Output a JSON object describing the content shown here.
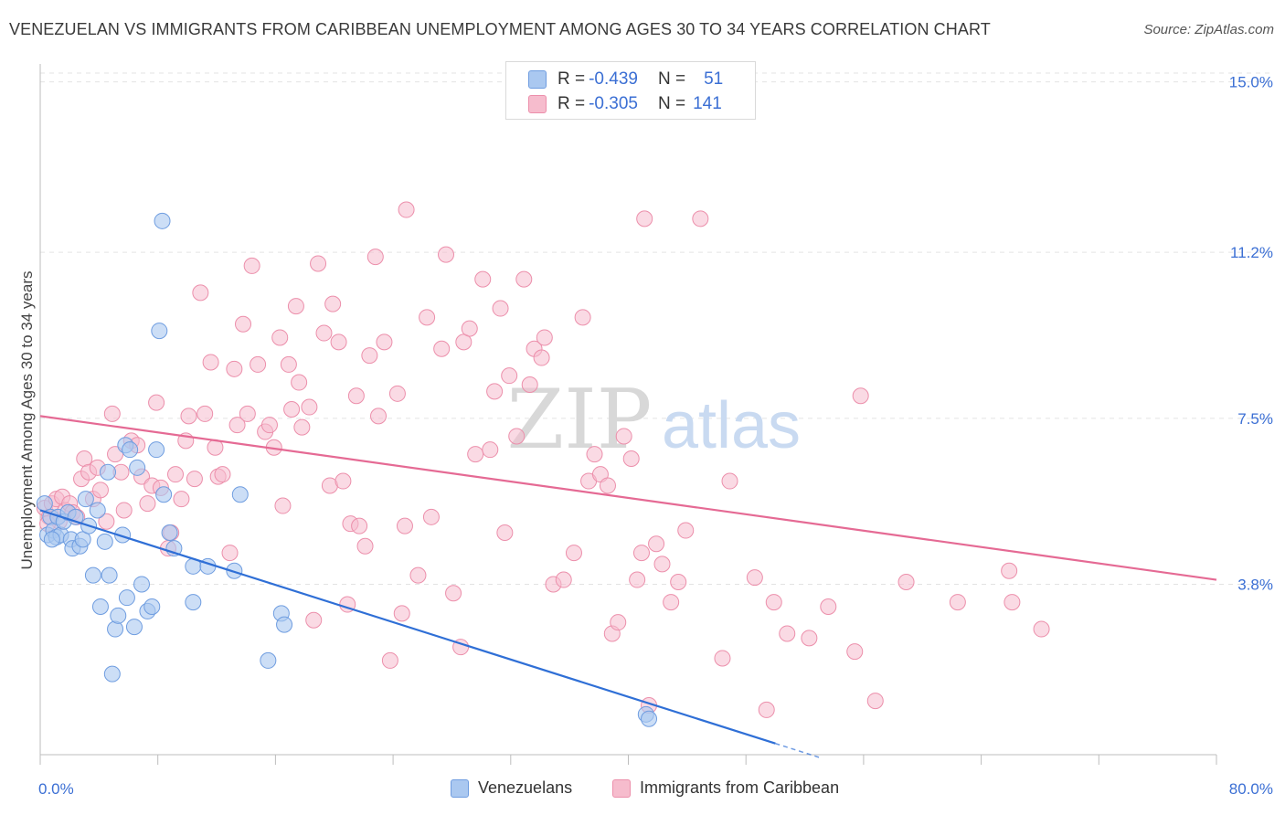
{
  "title": "VENEZUELAN VS IMMIGRANTS FROM CARIBBEAN UNEMPLOYMENT AMONG AGES 30 TO 34 YEARS CORRELATION CHART",
  "source": "Source: ZipAtlas.com",
  "watermark": {
    "zip": "ZIP",
    "atlas": "atlas"
  },
  "legend": {
    "rows": [
      {
        "r_label": "R = ",
        "r_value": "-0.439",
        "n_label": "N = ",
        "n_value": "51"
      },
      {
        "r_label": "R = ",
        "r_value": "-0.305",
        "n_label": "N = ",
        "n_value": "141"
      }
    ]
  },
  "bottom_legend": {
    "series1": "Venezuelans",
    "series2": "Immigrants from Caribbean"
  },
  "colors": {
    "blue_fill": "#aac8f0",
    "blue_stroke": "#6f9de0",
    "blue_line": "#2f6fd6",
    "pink_fill": "#f6bccd",
    "pink_stroke": "#ec8fab",
    "pink_line": "#e56a94",
    "tick_text": "#3b6fd4"
  },
  "chart_data": {
    "type": "scatter",
    "xlabel": "",
    "ylabel": "Unemployment Among Ages 30 to 34 years",
    "xlim": [
      0,
      80
    ],
    "ylim": [
      0,
      15.4
    ],
    "x_tick_labels": [
      "0.0%",
      "80.0%"
    ],
    "y_ticks": [
      3.8,
      7.5,
      11.2,
      15.0
    ],
    "y_tick_labels": [
      "3.8%",
      "7.5%",
      "11.2%",
      "15.0%"
    ],
    "grid": true,
    "series": [
      {
        "name": "Venezuelans",
        "r": -0.439,
        "n": 51,
        "trend": {
          "x": [
            0,
            50
          ],
          "y": [
            5.45,
            0.25
          ],
          "dashed_to_x": 53
        },
        "points": [
          [
            0.3,
            5.6
          ],
          [
            0.5,
            4.9
          ],
          [
            0.7,
            5.3
          ],
          [
            0.9,
            5.0
          ],
          [
            1.1,
            4.85
          ],
          [
            1.2,
            5.3
          ],
          [
            1.4,
            4.9
          ],
          [
            1.6,
            5.2
          ],
          [
            1.9,
            5.4
          ],
          [
            2.1,
            4.8
          ],
          [
            2.2,
            4.6
          ],
          [
            2.4,
            5.3
          ],
          [
            2.7,
            4.65
          ],
          [
            2.9,
            4.8
          ],
          [
            3.1,
            5.7
          ],
          [
            3.3,
            5.1
          ],
          [
            3.6,
            4.0
          ],
          [
            3.9,
            5.45
          ],
          [
            4.1,
            3.3
          ],
          [
            4.4,
            4.75
          ],
          [
            4.6,
            6.3
          ],
          [
            4.7,
            4.0
          ],
          [
            4.9,
            1.8
          ],
          [
            5.1,
            2.8
          ],
          [
            5.3,
            3.1
          ],
          [
            5.6,
            4.9
          ],
          [
            5.8,
            6.9
          ],
          [
            5.9,
            3.5
          ],
          [
            6.1,
            6.8
          ],
          [
            6.4,
            2.85
          ],
          [
            6.6,
            6.4
          ],
          [
            6.9,
            3.8
          ],
          [
            7.3,
            3.2
          ],
          [
            7.6,
            3.3
          ],
          [
            7.9,
            6.8
          ],
          [
            8.3,
            11.9
          ],
          [
            8.4,
            5.8
          ],
          [
            8.1,
            9.45
          ],
          [
            8.8,
            4.95
          ],
          [
            9.1,
            4.6
          ],
          [
            10.4,
            4.2
          ],
          [
            10.4,
            3.4
          ],
          [
            11.4,
            4.2
          ],
          [
            13.2,
            4.1
          ],
          [
            13.6,
            5.8
          ],
          [
            15.5,
            2.1
          ],
          [
            16.4,
            3.15
          ],
          [
            16.6,
            2.9
          ],
          [
            41.2,
            0.9
          ],
          [
            41.4,
            0.8
          ],
          [
            0.8,
            4.8
          ]
        ]
      },
      {
        "name": "Immigrants from Caribbean",
        "r": -0.305,
        "n": 141,
        "trend": {
          "x": [
            0,
            80
          ],
          "y": [
            7.55,
            3.9
          ]
        },
        "points": [
          [
            0.3,
            5.5
          ],
          [
            0.6,
            5.3
          ],
          [
            0.8,
            5.6
          ],
          [
            1.1,
            5.7
          ],
          [
            1.3,
            5.2
          ],
          [
            1.5,
            5.75
          ],
          [
            1.7,
            5.45
          ],
          [
            2.0,
            5.6
          ],
          [
            2.2,
            5.4
          ],
          [
            2.5,
            5.3
          ],
          [
            2.8,
            6.15
          ],
          [
            3.0,
            6.6
          ],
          [
            3.3,
            6.3
          ],
          [
            3.6,
            5.7
          ],
          [
            3.9,
            6.4
          ],
          [
            4.1,
            5.9
          ],
          [
            4.5,
            5.2
          ],
          [
            4.9,
            7.6
          ],
          [
            5.1,
            6.7
          ],
          [
            5.5,
            6.3
          ],
          [
            5.7,
            5.45
          ],
          [
            6.2,
            7.0
          ],
          [
            6.6,
            6.9
          ],
          [
            6.9,
            6.2
          ],
          [
            7.3,
            5.6
          ],
          [
            7.6,
            6.0
          ],
          [
            7.9,
            7.85
          ],
          [
            8.2,
            5.95
          ],
          [
            8.7,
            4.6
          ],
          [
            8.9,
            4.95
          ],
          [
            9.2,
            6.25
          ],
          [
            9.6,
            5.7
          ],
          [
            9.9,
            7.0
          ],
          [
            10.1,
            7.55
          ],
          [
            10.5,
            6.15
          ],
          [
            10.9,
            10.3
          ],
          [
            11.2,
            7.6
          ],
          [
            11.6,
            8.75
          ],
          [
            11.9,
            6.85
          ],
          [
            12.1,
            6.2
          ],
          [
            12.4,
            6.25
          ],
          [
            12.9,
            4.5
          ],
          [
            13.2,
            8.6
          ],
          [
            13.4,
            7.35
          ],
          [
            13.8,
            9.6
          ],
          [
            14.1,
            7.6
          ],
          [
            14.4,
            10.9
          ],
          [
            14.8,
            8.7
          ],
          [
            15.3,
            7.2
          ],
          [
            15.6,
            7.35
          ],
          [
            15.9,
            6.85
          ],
          [
            16.3,
            9.3
          ],
          [
            16.5,
            5.55
          ],
          [
            16.9,
            8.7
          ],
          [
            17.1,
            7.7
          ],
          [
            17.4,
            10.0
          ],
          [
            17.6,
            8.3
          ],
          [
            17.8,
            7.3
          ],
          [
            18.3,
            7.75
          ],
          [
            18.6,
            3.0
          ],
          [
            18.9,
            10.95
          ],
          [
            19.3,
            9.4
          ],
          [
            19.7,
            6.0
          ],
          [
            19.9,
            10.05
          ],
          [
            20.3,
            9.2
          ],
          [
            20.6,
            6.1
          ],
          [
            20.9,
            3.35
          ],
          [
            21.1,
            5.15
          ],
          [
            21.5,
            8.0
          ],
          [
            21.7,
            5.1
          ],
          [
            22.1,
            4.65
          ],
          [
            22.4,
            8.9
          ],
          [
            22.8,
            11.1
          ],
          [
            23.0,
            7.55
          ],
          [
            23.4,
            9.2
          ],
          [
            23.8,
            2.1
          ],
          [
            24.3,
            8.05
          ],
          [
            24.6,
            3.15
          ],
          [
            24.8,
            5.1
          ],
          [
            24.9,
            12.15
          ],
          [
            25.7,
            4.0
          ],
          [
            26.3,
            9.75
          ],
          [
            26.6,
            5.3
          ],
          [
            27.3,
            9.05
          ],
          [
            27.6,
            11.15
          ],
          [
            28.1,
            3.6
          ],
          [
            28.6,
            2.4
          ],
          [
            28.8,
            9.2
          ],
          [
            29.2,
            9.5
          ],
          [
            29.6,
            6.7
          ],
          [
            30.1,
            10.6
          ],
          [
            30.6,
            6.8
          ],
          [
            30.9,
            8.1
          ],
          [
            31.3,
            9.95
          ],
          [
            31.6,
            4.95
          ],
          [
            31.9,
            8.45
          ],
          [
            32.4,
            7.1
          ],
          [
            32.9,
            10.6
          ],
          [
            33.3,
            8.25
          ],
          [
            33.6,
            9.05
          ],
          [
            34.1,
            8.85
          ],
          [
            34.3,
            9.3
          ],
          [
            34.9,
            3.8
          ],
          [
            35.6,
            3.9
          ],
          [
            36.3,
            4.5
          ],
          [
            36.9,
            9.75
          ],
          [
            37.3,
            6.1
          ],
          [
            37.7,
            6.7
          ],
          [
            38.1,
            6.25
          ],
          [
            38.6,
            6.0
          ],
          [
            38.9,
            2.7
          ],
          [
            39.3,
            2.95
          ],
          [
            39.7,
            7.1
          ],
          [
            40.2,
            6.6
          ],
          [
            40.6,
            3.9
          ],
          [
            40.9,
            4.5
          ],
          [
            41.1,
            11.95
          ],
          [
            41.4,
            1.1
          ],
          [
            41.9,
            4.7
          ],
          [
            42.3,
            4.25
          ],
          [
            42.9,
            3.4
          ],
          [
            43.4,
            3.85
          ],
          [
            43.9,
            5.0
          ],
          [
            44.9,
            11.95
          ],
          [
            46.4,
            2.15
          ],
          [
            46.9,
            6.1
          ],
          [
            48.6,
            3.95
          ],
          [
            49.4,
            1.0
          ],
          [
            49.9,
            3.4
          ],
          [
            50.8,
            2.7
          ],
          [
            52.3,
            2.6
          ],
          [
            53.6,
            3.3
          ],
          [
            55.4,
            2.3
          ],
          [
            55.8,
            8.0
          ],
          [
            56.8,
            1.2
          ],
          [
            58.9,
            3.85
          ],
          [
            62.4,
            3.4
          ],
          [
            65.9,
            4.1
          ],
          [
            66.1,
            3.4
          ],
          [
            68.1,
            2.8
          ],
          [
            0.5,
            5.15
          ]
        ]
      }
    ]
  }
}
